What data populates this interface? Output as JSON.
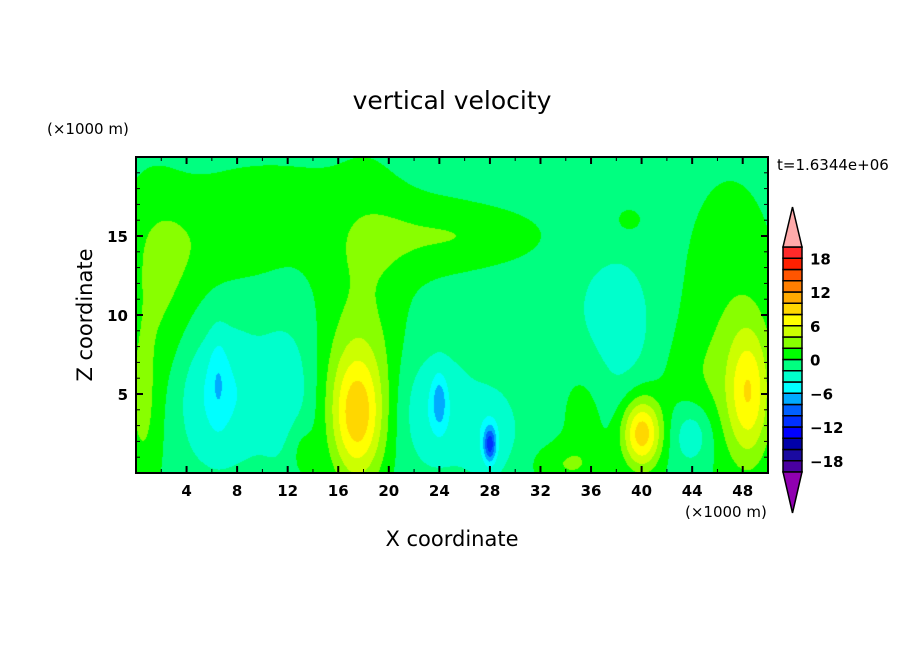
{
  "chart_data": {
    "type": "heatmap",
    "subtype": "filled-contour",
    "title": "vertical velocity",
    "xlabel": "X coordinate",
    "ylabel": "Z coordinate",
    "x_units": "(×1000 m)",
    "z_units": "(×1000 m)",
    "time_label": "t=1.6344e+06",
    "xlim": [
      0,
      50
    ],
    "ylim": [
      0,
      20
    ],
    "x_ticks": [
      4,
      8,
      12,
      16,
      20,
      24,
      28,
      32,
      36,
      40,
      44,
      48
    ],
    "y_ticks": [
      5,
      10,
      15
    ],
    "colorbar": {
      "levels": [
        -20,
        -18,
        -16,
        -14,
        -12,
        -10,
        -8,
        -6,
        -4,
        -2,
        0,
        2,
        4,
        6,
        8,
        10,
        12,
        14,
        16,
        18,
        20
      ],
      "tick_labels": [
        "18",
        "12",
        "6",
        "0",
        "-6",
        "-12",
        "-18"
      ],
      "tick_values": [
        18,
        12,
        6,
        0,
        -6,
        -12,
        -18
      ],
      "colors": [
        "#4a00a0",
        "#1a0aa0",
        "#0000aa",
        "#0000ff",
        "#0030ff",
        "#0060ff",
        "#00aaff",
        "#00ffff",
        "#00ffcc",
        "#00ff80",
        "#00ff00",
        "#88ff00",
        "#ccff00",
        "#ffff00",
        "#ffd700",
        "#ffaa00",
        "#ff7f00",
        "#ff5500",
        "#ff2000",
        "#ff2a2a"
      ],
      "under_color": "#9000b0",
      "over_color": "#ffaaaa"
    },
    "background_value": -1,
    "features": [
      {
        "x": 7,
        "z": 15,
        "sx": 5,
        "sz": 2.5,
        "amp": 2
      },
      {
        "x": 11,
        "z": 18,
        "sx": 3,
        "sz": 1,
        "amp": 2
      },
      {
        "x": 1,
        "z": 8,
        "sx": 1.8,
        "sz": 7,
        "amp": 2.2
      },
      {
        "x": 3,
        "z": 12,
        "sx": 2,
        "sz": 4,
        "amp": 1.6
      },
      {
        "x": 18,
        "z": 12,
        "sx": 2.5,
        "sz": 6,
        "amp": 2.2
      },
      {
        "x": 22,
        "z": 15,
        "sx": 4,
        "sz": 2,
        "amp": 2
      },
      {
        "x": 27.5,
        "z": 15,
        "sx": 4,
        "sz": 1.3,
        "amp": 1.8
      },
      {
        "x": 47,
        "z": 9,
        "sx": 3,
        "sz": 7,
        "amp": 2.5
      },
      {
        "x": 44,
        "z": 5,
        "sx": 2.5,
        "sz": 3,
        "amp": 1.5
      },
      {
        "x": 35.5,
        "z": 4,
        "sx": 1.5,
        "sz": 3,
        "amp": 2
      },
      {
        "x": 34,
        "z": 0.5,
        "sx": 2,
        "sz": 1,
        "amp": 2.5
      },
      {
        "x": 39,
        "z": 16,
        "sx": 0.8,
        "sz": 0.6,
        "amp": 2
      },
      {
        "x": 13,
        "z": 1.5,
        "sx": 0.8,
        "sz": 1.5,
        "amp": 2
      },
      {
        "x": 17.5,
        "z": 4.5,
        "sx": 2.2,
        "sz": 4,
        "amp": 3
      },
      {
        "x": 17.5,
        "z": 3.5,
        "sx": 1.4,
        "sz": 2.8,
        "amp": 7
      },
      {
        "x": 40,
        "z": 2.5,
        "sx": 1.1,
        "sz": 1.6,
        "amp": 10
      },
      {
        "x": 48.5,
        "z": 5,
        "sx": 1.2,
        "sz": 3,
        "amp": 7
      },
      {
        "x": 0.5,
        "z": 4,
        "sx": 0.8,
        "sz": 3,
        "amp": 2
      },
      {
        "x": 6.5,
        "z": 5,
        "sx": 2.5,
        "sz": 3,
        "amp": -3.5
      },
      {
        "x": 6.5,
        "z": 6,
        "sx": 0.5,
        "sz": 2,
        "amp": -2
      },
      {
        "x": 12,
        "z": 5,
        "sx": 1.5,
        "sz": 3,
        "amp": -2.5
      },
      {
        "x": 23.5,
        "z": 4,
        "sx": 2,
        "sz": 2.5,
        "amp": -3
      },
      {
        "x": 24,
        "z": 4.5,
        "sx": 0.4,
        "sz": 1.2,
        "amp": -4
      },
      {
        "x": 28,
        "z": 1.8,
        "sx": 0.35,
        "sz": 0.8,
        "amp": -8
      },
      {
        "x": 28,
        "z": 2.5,
        "sx": 1.5,
        "sz": 2,
        "amp": -2.5
      },
      {
        "x": 38,
        "z": 9,
        "sx": 2.5,
        "sz": 3.5,
        "amp": -2.2
      },
      {
        "x": 44,
        "z": 2.5,
        "sx": 1.2,
        "sz": 1.5,
        "amp": -4
      }
    ]
  }
}
